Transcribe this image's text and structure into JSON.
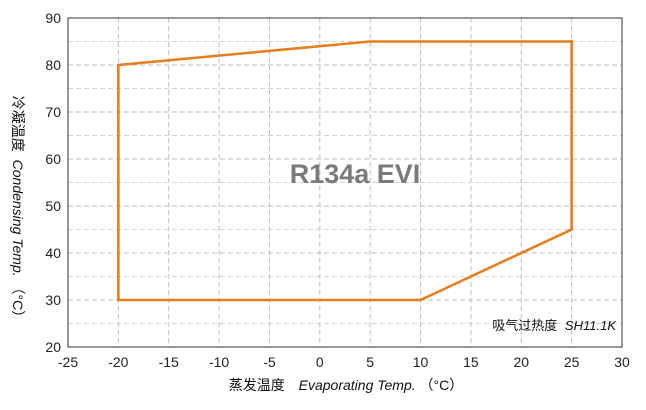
{
  "chart_data": {
    "type": "line",
    "title": "R134a EVI",
    "xlabel": {
      "cn": "蒸发温度",
      "en": "Evaporating Temp.",
      "unit": "（°C）"
    },
    "ylabel": {
      "cn": "冷凝温度",
      "en": "Condensing Temp.",
      "unit": "（°C）"
    },
    "annotation": {
      "cn": "吸气过热度",
      "en": "SH11.1K"
    },
    "xlim": [
      -25,
      30
    ],
    "ylim": [
      20,
      90
    ],
    "xticks": [
      -25,
      -20,
      -15,
      -10,
      -5,
      0,
      5,
      10,
      15,
      20,
      25,
      30
    ],
    "yticks": [
      20,
      30,
      40,
      50,
      60,
      70,
      80,
      90
    ],
    "grid": true,
    "series": [
      {
        "closed": true,
        "color": "#e67e22",
        "x": [
          -20,
          5,
          25,
          25,
          10,
          -20
        ],
        "y": [
          80,
          85,
          85,
          45,
          30,
          30
        ]
      }
    ]
  }
}
